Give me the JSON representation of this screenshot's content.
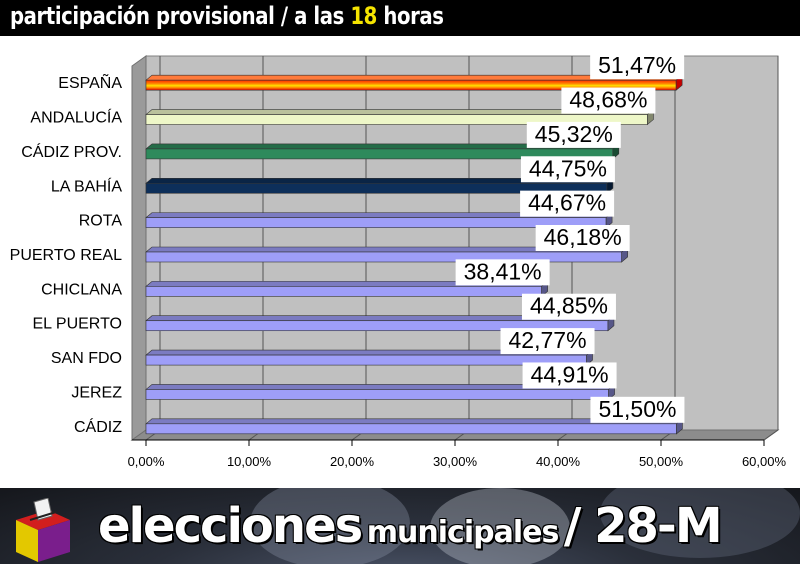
{
  "header": {
    "title_prefix": "participación provisional / a las",
    "title_hour": "18",
    "title_suffix": "horas"
  },
  "footer": {
    "word1": "elecciones",
    "word2": "municipales",
    "word3": "/ 28-M"
  },
  "colors": {
    "espana": "#ff0000",
    "andalucia": "#eef7c8",
    "cadiz_prov": "#2e8a5c",
    "la_bahia": "#0d2f5a",
    "municipios": "#9e9ef8"
  },
  "chart_data": {
    "type": "bar",
    "orientation": "horizontal",
    "categories": [
      "ESPAÑA",
      "ANDALUCÍA",
      "CÁDIZ PROV.",
      "LA BAHÍA",
      "ROTA",
      "PUERTO REAL",
      "CHICLANA",
      "EL PUERTO",
      "SAN FDO",
      "JEREZ",
      "CÁDIZ"
    ],
    "values": [
      51.47,
      48.68,
      45.32,
      44.75,
      44.67,
      46.18,
      38.41,
      44.85,
      42.77,
      44.91,
      51.5
    ],
    "value_labels": [
      "51,47%",
      "48,68%",
      "45,32%",
      "44,75%",
      "44,67%",
      "46,18%",
      "38,41%",
      "44,85%",
      "42,77%",
      "44,91%",
      "51,50%"
    ],
    "xlim": [
      0,
      60
    ],
    "xticks": [
      0,
      10,
      20,
      30,
      40,
      50,
      60
    ],
    "xtick_labels": [
      "0,00%",
      "10,00%",
      "20,00%",
      "30,00%",
      "40,00%",
      "50,00%",
      "60,00%"
    ],
    "grid": true
  }
}
